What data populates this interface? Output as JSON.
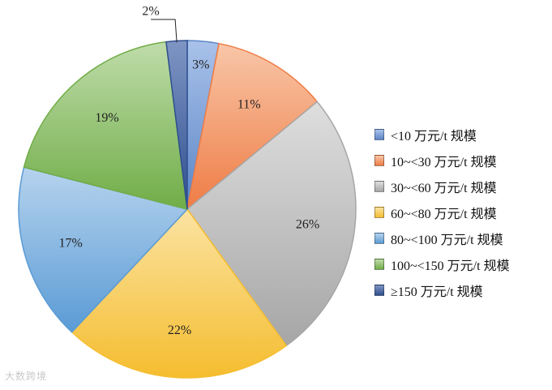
{
  "chart_data": {
    "type": "pie",
    "title": "",
    "slices": [
      {
        "label": "<10 万元/t 规模",
        "value": 3,
        "data_label": "3%",
        "color": "#5b85c6",
        "color_light": "#a9c2ea"
      },
      {
        "label": "10~<30 万元/t 规模",
        "value": 11,
        "data_label": "11%",
        "color": "#ef7c45",
        "color_light": "#f8c6a8"
      },
      {
        "label": "30~<60 万元/t 规模",
        "value": 26,
        "data_label": "26%",
        "color": "#a6a6a6",
        "color_light": "#dedede"
      },
      {
        "label": "60~<80 万元/t 规模",
        "value": 22,
        "data_label": "22%",
        "color": "#f5bd2f",
        "color_light": "#fbe3a2"
      },
      {
        "label": "80~<100 万元/t 规模",
        "value": 17,
        "data_label": "17%",
        "color": "#5a9bd5",
        "color_light": "#b6d3ee"
      },
      {
        "label": "100~<150 万元/t 规模",
        "value": 19,
        "data_label": "19%",
        "color": "#70ad47",
        "color_light": "#bfdcaa"
      },
      {
        "label": "≥150 万元/t 规模",
        "value": 2,
        "data_label": "2%",
        "color": "#2f4f8f",
        "color_light": "#7f96c4"
      }
    ],
    "legend_position": "right"
  },
  "watermark": "大数跨境"
}
